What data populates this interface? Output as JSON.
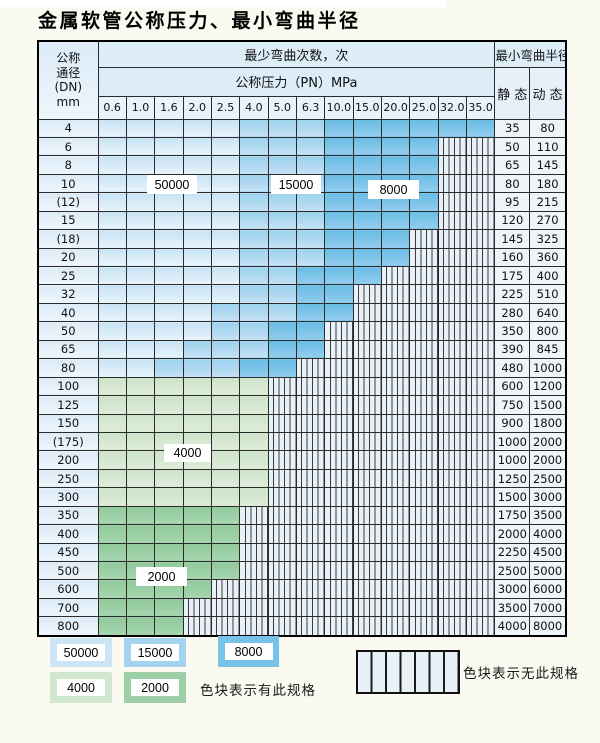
{
  "title": "金属软管公称压力、最小弯曲半径",
  "table": {
    "corner": [
      "公称",
      "通径",
      "(DN)",
      "mm"
    ],
    "bend_cycles_header": "最少弯曲次数，次",
    "pressure_header": "公称压力（PN）MPa",
    "radius_header": "最小弯曲半径",
    "static_header": "静 态",
    "dynamic_header": "动 态",
    "pressures": [
      "0.6",
      "1.0",
      "1.6",
      "2.0",
      "2.5",
      "4.0",
      "5.0",
      "6.3",
      "10.0",
      "15.0",
      "20.0",
      "25.0",
      "32.0",
      "35.0"
    ],
    "rows": [
      {
        "dn": "4",
        "static": "35",
        "dynamic": "80",
        "band": "blue",
        "light_end": 4,
        "medium_end": 7,
        "colored_end": 13
      },
      {
        "dn": "6",
        "static": "50",
        "dynamic": "110",
        "band": "blue",
        "light_end": 4,
        "medium_end": 7,
        "colored_end": 11
      },
      {
        "dn": "8",
        "static": "65",
        "dynamic": "145",
        "band": "blue",
        "light_end": 4,
        "medium_end": 7,
        "colored_end": 11
      },
      {
        "dn": "10",
        "static": "80",
        "dynamic": "180",
        "band": "blue",
        "light_end": 4,
        "medium_end": 7,
        "colored_end": 11
      },
      {
        "dn": "(12)",
        "static": "95",
        "dynamic": "215",
        "band": "blue",
        "light_end": 4,
        "medium_end": 7,
        "colored_end": 11
      },
      {
        "dn": "15",
        "static": "120",
        "dynamic": "270",
        "band": "blue",
        "light_end": 4,
        "medium_end": 7,
        "colored_end": 11
      },
      {
        "dn": "(18)",
        "static": "145",
        "dynamic": "325",
        "band": "blue",
        "light_end": 4,
        "medium_end": 7,
        "colored_end": 10
      },
      {
        "dn": "20",
        "static": "160",
        "dynamic": "360",
        "band": "blue",
        "light_end": 4,
        "medium_end": 7,
        "colored_end": 10
      },
      {
        "dn": "25",
        "static": "175",
        "dynamic": "400",
        "band": "blue",
        "light_end": 4,
        "medium_end": 6,
        "colored_end": 9
      },
      {
        "dn": "32",
        "static": "225",
        "dynamic": "510",
        "band": "blue",
        "light_end": 4,
        "medium_end": 6,
        "colored_end": 8
      },
      {
        "dn": "40",
        "static": "280",
        "dynamic": "640",
        "band": "blue",
        "light_end": 3,
        "medium_end": 6,
        "colored_end": 8
      },
      {
        "dn": "50",
        "static": "350",
        "dynamic": "800",
        "band": "blue",
        "light_end": 3,
        "medium_end": 5,
        "colored_end": 7
      },
      {
        "dn": "65",
        "static": "390",
        "dynamic": "845",
        "band": "blue",
        "light_end": 2,
        "medium_end": 5,
        "colored_end": 7
      },
      {
        "dn": "80",
        "static": "480",
        "dynamic": "1000",
        "band": "blue",
        "light_end": 1,
        "medium_end": 4,
        "colored_end": 6
      },
      {
        "dn": "100",
        "static": "600",
        "dynamic": "1200",
        "band": "green-light",
        "colored_end": 5
      },
      {
        "dn": "125",
        "static": "750",
        "dynamic": "1500",
        "band": "green-light",
        "colored_end": 5
      },
      {
        "dn": "150",
        "static": "900",
        "dynamic": "1800",
        "band": "green-light",
        "colored_end": 5
      },
      {
        "dn": "(175)",
        "static": "1000",
        "dynamic": "2000",
        "band": "green-light",
        "colored_end": 5
      },
      {
        "dn": "200",
        "static": "1000",
        "dynamic": "2000",
        "band": "green-light",
        "colored_end": 5
      },
      {
        "dn": "250",
        "static": "1250",
        "dynamic": "2500",
        "band": "green-light",
        "colored_end": 5
      },
      {
        "dn": "300",
        "static": "1500",
        "dynamic": "3000",
        "band": "green-light",
        "colored_end": 5
      },
      {
        "dn": "350",
        "static": "1750",
        "dynamic": "3500",
        "band": "green-dark",
        "colored_end": 4
      },
      {
        "dn": "400",
        "static": "2000",
        "dynamic": "4000",
        "band": "green-dark",
        "colored_end": 4
      },
      {
        "dn": "450",
        "static": "2250",
        "dynamic": "4500",
        "band": "green-dark",
        "colored_end": 4
      },
      {
        "dn": "500",
        "static": "2500",
        "dynamic": "5000",
        "band": "green-dark",
        "colored_end": 4
      },
      {
        "dn": "600",
        "static": "3000",
        "dynamic": "6000",
        "band": "green-dark",
        "colored_end": 3
      },
      {
        "dn": "700",
        "static": "3500",
        "dynamic": "7000",
        "band": "green-dark",
        "colored_end": 2
      },
      {
        "dn": "800",
        "static": "4000",
        "dynamic": "8000",
        "band": "green-dark",
        "colored_end": 2
      }
    ]
  },
  "overlays": [
    "50000",
    "15000",
    "8000",
    "4000",
    "2000"
  ],
  "legend": {
    "items": [
      {
        "label": "50000",
        "color": "#cbe5f5"
      },
      {
        "label": "15000",
        "color": "#a3d3ee"
      },
      {
        "label": "8000",
        "color": "#76c2e8"
      },
      {
        "label": "4000",
        "color": "#d2e7cf"
      },
      {
        "label": "2000",
        "color": "#9ccfa5"
      }
    ],
    "has_spec_text": "色块表示有此规格",
    "no_spec_text": "色块表示无此规格"
  },
  "chart_data": {
    "type": "table",
    "title": "金属软管公称压力、最小弯曲半径",
    "pressure_columns_MPa": [
      0.6,
      1.0,
      1.6,
      2.0,
      2.5,
      4.0,
      5.0,
      6.3,
      10.0,
      15.0,
      20.0,
      25.0,
      32.0,
      35.0
    ],
    "cycle_color_legend": {
      "50000": "light-blue",
      "15000": "medium-blue",
      "8000": "dark-blue",
      "4000": "light-green",
      "2000": "dark-green",
      "no_spec": "hatched"
    },
    "rows": [
      {
        "dn": 4,
        "static_radius": 35,
        "dynamic_radius": 80,
        "spec_max_pn": 35.0,
        "bands": [
          [
            "50000",
            "0.6-2.5"
          ],
          [
            "15000",
            "4.0-6.3"
          ],
          [
            "8000",
            "10.0-35.0"
          ]
        ]
      },
      {
        "dn": 6,
        "static_radius": 50,
        "dynamic_radius": 110,
        "spec_max_pn": 25.0,
        "bands": [
          [
            "50000",
            "0.6-2.5"
          ],
          [
            "15000",
            "4.0-6.3"
          ],
          [
            "8000",
            "10.0-25.0"
          ]
        ]
      },
      {
        "dn": 8,
        "static_radius": 65,
        "dynamic_radius": 145,
        "spec_max_pn": 25.0,
        "bands": [
          [
            "50000",
            "0.6-2.5"
          ],
          [
            "15000",
            "4.0-6.3"
          ],
          [
            "8000",
            "10.0-25.0"
          ]
        ]
      },
      {
        "dn": 10,
        "static_radius": 80,
        "dynamic_radius": 180,
        "spec_max_pn": 25.0,
        "bands": [
          [
            "50000",
            "0.6-2.5"
          ],
          [
            "15000",
            "4.0-6.3"
          ],
          [
            "8000",
            "10.0-25.0"
          ]
        ]
      },
      {
        "dn": "(12)",
        "static_radius": 95,
        "dynamic_radius": 215,
        "spec_max_pn": 25.0,
        "bands": [
          [
            "50000",
            "0.6-2.5"
          ],
          [
            "15000",
            "4.0-6.3"
          ],
          [
            "8000",
            "10.0-25.0"
          ]
        ]
      },
      {
        "dn": 15,
        "static_radius": 120,
        "dynamic_radius": 270,
        "spec_max_pn": 25.0,
        "bands": [
          [
            "50000",
            "0.6-2.5"
          ],
          [
            "15000",
            "4.0-6.3"
          ],
          [
            "8000",
            "10.0-25.0"
          ]
        ]
      },
      {
        "dn": "(18)",
        "static_radius": 145,
        "dynamic_radius": 325,
        "spec_max_pn": 20.0,
        "bands": [
          [
            "50000",
            "0.6-2.5"
          ],
          [
            "15000",
            "4.0-6.3"
          ],
          [
            "8000",
            "10.0-20.0"
          ]
        ]
      },
      {
        "dn": 20,
        "static_radius": 160,
        "dynamic_radius": 360,
        "spec_max_pn": 20.0,
        "bands": [
          [
            "50000",
            "0.6-2.5"
          ],
          [
            "15000",
            "4.0-6.3"
          ],
          [
            "8000",
            "10.0-20.0"
          ]
        ]
      },
      {
        "dn": 25,
        "static_radius": 175,
        "dynamic_radius": 400,
        "spec_max_pn": 15.0,
        "bands": [
          [
            "50000",
            "0.6-2.5"
          ],
          [
            "15000",
            "4.0-5.0"
          ],
          [
            "8000",
            "6.3-15.0"
          ]
        ]
      },
      {
        "dn": 32,
        "static_radius": 225,
        "dynamic_radius": 510,
        "spec_max_pn": 10.0,
        "bands": [
          [
            "50000",
            "0.6-2.5"
          ],
          [
            "15000",
            "4.0-5.0"
          ],
          [
            "8000",
            "6.3-10.0"
          ]
        ]
      },
      {
        "dn": 40,
        "static_radius": 280,
        "dynamic_radius": 640,
        "spec_max_pn": 10.0,
        "bands": [
          [
            "50000",
            "0.6-2.0"
          ],
          [
            "15000",
            "2.5-5.0"
          ],
          [
            "8000",
            "6.3-10.0"
          ]
        ]
      },
      {
        "dn": 50,
        "static_radius": 350,
        "dynamic_radius": 800,
        "spec_max_pn": 6.3,
        "bands": [
          [
            "50000",
            "0.6-2.0"
          ],
          [
            "15000",
            "2.5-4.0"
          ],
          [
            "8000",
            "5.0-6.3"
          ]
        ]
      },
      {
        "dn": 65,
        "static_radius": 390,
        "dynamic_radius": 845,
        "spec_max_pn": 6.3,
        "bands": [
          [
            "50000",
            "0.6-1.6"
          ],
          [
            "15000",
            "2.0-4.0"
          ],
          [
            "8000",
            "5.0-6.3"
          ]
        ]
      },
      {
        "dn": 80,
        "static_radius": 480,
        "dynamic_radius": 1000,
        "spec_max_pn": 5.0,
        "bands": [
          [
            "50000",
            "0.6-1.0"
          ],
          [
            "15000",
            "1.6-2.5"
          ],
          [
            "8000",
            "4.0-5.0"
          ]
        ]
      },
      {
        "dn": 100,
        "static_radius": 600,
        "dynamic_radius": 1200,
        "spec_max_pn": 4.0,
        "bands": [
          [
            "4000",
            "0.6-4.0"
          ]
        ]
      },
      {
        "dn": 125,
        "static_radius": 750,
        "dynamic_radius": 1500,
        "spec_max_pn": 4.0,
        "bands": [
          [
            "4000",
            "0.6-4.0"
          ]
        ]
      },
      {
        "dn": 150,
        "static_radius": 900,
        "dynamic_radius": 1800,
        "spec_max_pn": 4.0,
        "bands": [
          [
            "4000",
            "0.6-4.0"
          ]
        ]
      },
      {
        "dn": "(175)",
        "static_radius": 1000,
        "dynamic_radius": 2000,
        "spec_max_pn": 4.0,
        "bands": [
          [
            "4000",
            "0.6-4.0"
          ]
        ]
      },
      {
        "dn": 200,
        "static_radius": 1000,
        "dynamic_radius": 2000,
        "spec_max_pn": 4.0,
        "bands": [
          [
            "4000",
            "0.6-4.0"
          ]
        ]
      },
      {
        "dn": 250,
        "static_radius": 1250,
        "dynamic_radius": 2500,
        "spec_max_pn": 4.0,
        "bands": [
          [
            "4000",
            "0.6-4.0"
          ]
        ]
      },
      {
        "dn": 300,
        "static_radius": 1500,
        "dynamic_radius": 3000,
        "spec_max_pn": 4.0,
        "bands": [
          [
            "4000",
            "0.6-4.0"
          ]
        ]
      },
      {
        "dn": 350,
        "static_radius": 1750,
        "dynamic_radius": 3500,
        "spec_max_pn": 2.5,
        "bands": [
          [
            "2000",
            "0.6-2.5"
          ]
        ]
      },
      {
        "dn": 400,
        "static_radius": 2000,
        "dynamic_radius": 4000,
        "spec_max_pn": 2.5,
        "bands": [
          [
            "2000",
            "0.6-2.5"
          ]
        ]
      },
      {
        "dn": 450,
        "static_radius": 2250,
        "dynamic_radius": 4500,
        "spec_max_pn": 2.5,
        "bands": [
          [
            "2000",
            "0.6-2.5"
          ]
        ]
      },
      {
        "dn": 500,
        "static_radius": 2500,
        "dynamic_radius": 5000,
        "spec_max_pn": 2.5,
        "bands": [
          [
            "2000",
            "0.6-2.5"
          ]
        ]
      },
      {
        "dn": 600,
        "static_radius": 3000,
        "dynamic_radius": 6000,
        "spec_max_pn": 2.0,
        "bands": [
          [
            "2000",
            "0.6-2.0"
          ]
        ]
      },
      {
        "dn": 700,
        "static_radius": 3500,
        "dynamic_radius": 7000,
        "spec_max_pn": 1.6,
        "bands": [
          [
            "2000",
            "0.6-1.6"
          ]
        ]
      },
      {
        "dn": 800,
        "static_radius": 4000,
        "dynamic_radius": 8000,
        "spec_max_pn": 1.6,
        "bands": [
          [
            "2000",
            "0.6-1.6"
          ]
        ]
      }
    ]
  }
}
